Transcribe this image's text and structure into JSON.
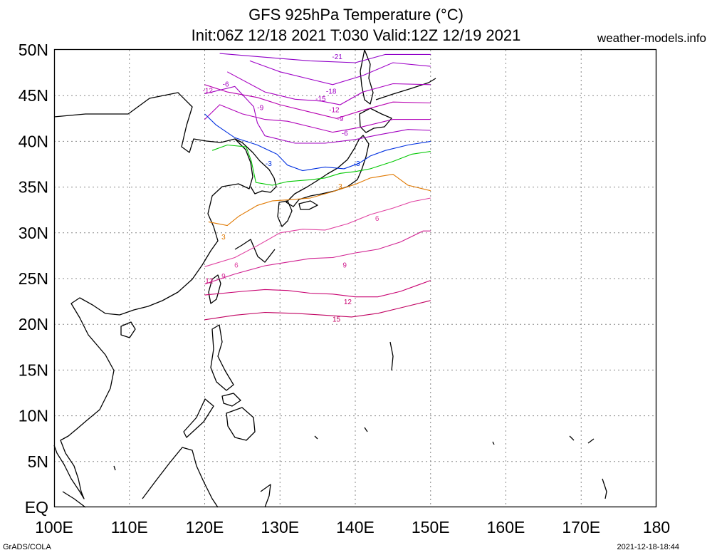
{
  "title": {
    "line1": "GFS 925hPa Temperature (°C)",
    "line2": "Init:06Z 12/18 2021 T:030 Valid:12Z 12/19 2021"
  },
  "site": "weather-models.info",
  "footer": {
    "left": "GrADS/COLA",
    "right": "2021-12-18-18:44"
  },
  "axes": {
    "lat_labels": [
      "EQ",
      "5N",
      "10N",
      "15N",
      "20N",
      "25N",
      "30N",
      "35N",
      "40N",
      "45N",
      "50N"
    ],
    "lat_values": [
      0,
      5,
      10,
      15,
      20,
      25,
      30,
      35,
      40,
      45,
      50
    ],
    "lon_labels": [
      "100E",
      "110E",
      "120E",
      "130E",
      "140E",
      "150E",
      "160E",
      "170E",
      "180"
    ],
    "lon_values": [
      100,
      110,
      120,
      130,
      140,
      150,
      160,
      170,
      180
    ]
  },
  "map_extent": {
    "lon": [
      100,
      180
    ],
    "lat": [
      0,
      50
    ],
    "data_lon": [
      120,
      150
    ]
  },
  "contours": [
    {
      "level": "-21",
      "color": "#9000c8",
      "points": [
        [
          122,
          49.6
        ],
        [
          128,
          49.2
        ],
        [
          134,
          48.8
        ],
        [
          140,
          48.6
        ],
        [
          144,
          49.5
        ],
        [
          150,
          49.5
        ]
      ]
    },
    {
      "level": "-18",
      "color": "#9e00c8",
      "points": [
        [
          126,
          48.8
        ],
        [
          130,
          47.6
        ],
        [
          134,
          46.8
        ],
        [
          137,
          46.2
        ],
        [
          141,
          47.2
        ],
        [
          145,
          48.6
        ],
        [
          150,
          48.2
        ]
      ]
    },
    {
      "level": "-15",
      "color": "#a800c0",
      "points": [
        [
          123,
          47.6
        ],
        [
          128,
          45.4
        ],
        [
          132,
          44.6
        ],
        [
          135.5,
          44.4
        ],
        [
          138,
          44.0
        ],
        [
          141,
          45.4
        ],
        [
          145,
          46.3
        ],
        [
          150,
          46.2
        ]
      ]
    },
    {
      "level": "-12",
      "color": "#b800b0",
      "points": [
        [
          120,
          46.2
        ],
        [
          123,
          45.4
        ],
        [
          127,
          44.8
        ],
        [
          130,
          44.0
        ],
        [
          134,
          43.2
        ],
        [
          137.5,
          42.5
        ],
        [
          141,
          43.4
        ],
        [
          145,
          44.3
        ],
        [
          150,
          44.2
        ]
      ]
    },
    {
      "level": "-9",
      "color": "#b000b8",
      "points": [
        [
          120,
          42.4
        ],
        [
          122,
          44.0
        ],
        [
          125,
          43.0
        ],
        [
          128,
          42.4
        ],
        [
          131,
          42.2
        ],
        [
          134,
          41.6
        ],
        [
          137,
          41.0
        ],
        [
          140.5,
          41.5
        ],
        [
          145,
          42.4
        ],
        [
          150,
          42.4
        ]
      ]
    },
    {
      "level": "-6",
      "color": "#a000c0",
      "points": [
        [
          120,
          45.2
        ],
        [
          124,
          46.0
        ],
        [
          126.5,
          43.8
        ],
        [
          127,
          42.0
        ],
        [
          128,
          40.6
        ],
        [
          132,
          39.8
        ],
        [
          136,
          39.8
        ],
        [
          140,
          40.2
        ],
        [
          143,
          40.7
        ],
        [
          147,
          41.3
        ],
        [
          150,
          41.2
        ]
      ]
    },
    {
      "level": "-3",
      "color": "#0030e0",
      "points": [
        [
          120,
          43.0
        ],
        [
          121.5,
          41.8
        ],
        [
          124,
          40.4
        ],
        [
          127,
          39.6
        ],
        [
          129.6,
          38.6
        ],
        [
          131,
          37.4
        ],
        [
          133,
          36.8
        ],
        [
          136,
          37.2
        ],
        [
          138.5,
          37.0
        ],
        [
          140.5,
          37.6
        ],
        [
          142,
          38.4
        ],
        [
          144,
          39.0
        ],
        [
          147,
          39.6
        ],
        [
          150,
          40.0
        ]
      ]
    },
    {
      "level": "0",
      "color": "#00c800",
      "points": [
        [
          121,
          39.0
        ],
        [
          123,
          39.6
        ],
        [
          125.5,
          39.4
        ],
        [
          126.2,
          37.8
        ],
        [
          126.8,
          35.5
        ],
        [
          129,
          35.2
        ],
        [
          131,
          35.6
        ],
        [
          134,
          35.8
        ],
        [
          136,
          36.0
        ],
        [
          138,
          36.5
        ],
        [
          140,
          36.7
        ],
        [
          142,
          37.0
        ],
        [
          145,
          37.8
        ],
        [
          147.5,
          38.6
        ],
        [
          150,
          38.9
        ]
      ]
    },
    {
      "level": "3",
      "color": "#e07800",
      "points": [
        [
          120.5,
          31.2
        ],
        [
          123,
          30.8
        ],
        [
          124.5,
          31.8
        ],
        [
          127,
          33.0
        ],
        [
          129,
          33.5
        ],
        [
          131,
          33.6
        ],
        [
          134,
          33.8
        ],
        [
          137,
          34.5
        ],
        [
          140,
          35.3
        ],
        [
          142,
          36.0
        ],
        [
          145,
          36.4
        ],
        [
          147,
          35.2
        ],
        [
          150,
          34.6
        ]
      ]
    },
    {
      "level": "6",
      "color": "#e040a0",
      "points": [
        [
          120,
          26.3
        ],
        [
          124,
          27.3
        ],
        [
          127,
          28.6
        ],
        [
          130,
          30.0
        ],
        [
          133,
          30.4
        ],
        [
          136,
          30.3
        ],
        [
          139,
          31.0
        ],
        [
          142,
          32.0
        ],
        [
          145,
          32.7
        ],
        [
          147.5,
          33.4
        ],
        [
          150,
          33.8
        ]
      ]
    },
    {
      "level": "9",
      "color": "#d02090",
      "points": [
        [
          120,
          24.4
        ],
        [
          124,
          25.5
        ],
        [
          128,
          26.4
        ],
        [
          131,
          26.8
        ],
        [
          134,
          27.2
        ],
        [
          137,
          27.3
        ],
        [
          140,
          27.8
        ],
        [
          143,
          28.2
        ],
        [
          146,
          29.0
        ],
        [
          149,
          30.2
        ],
        [
          150,
          30.2
        ]
      ]
    },
    {
      "level": "12",
      "color": "#c80070",
      "points": [
        [
          120,
          23.2
        ],
        [
          125,
          23.6
        ],
        [
          128,
          23.8
        ],
        [
          131,
          23.7
        ],
        [
          134,
          23.4
        ],
        [
          137,
          23.3
        ],
        [
          140,
          23.0
        ],
        [
          143,
          23.0
        ],
        [
          146,
          23.6
        ],
        [
          148,
          24.2
        ],
        [
          150,
          24.8
        ]
      ]
    },
    {
      "level": "15",
      "color": "#c00060",
      "points": [
        [
          120,
          20.5
        ],
        [
          124,
          21.0
        ],
        [
          128,
          21.3
        ],
        [
          132,
          21.2
        ],
        [
          136,
          21.0
        ],
        [
          139.5,
          20.8
        ],
        [
          143,
          21.2
        ],
        [
          146,
          21.8
        ],
        [
          150,
          22.6
        ]
      ]
    }
  ],
  "contour_labels": [
    {
      "text": "-21",
      "lon": 137.6,
      "lat": 49.0,
      "color": "#9000c8"
    },
    {
      "text": "-6",
      "lon": 122.8,
      "lat": 46.0,
      "color": "#a000c0"
    },
    {
      "text": "-12",
      "lon": 120.4,
      "lat": 45.3,
      "color": "#b800b0"
    },
    {
      "text": "-15",
      "lon": 135.4,
      "lat": 44.4,
      "color": "#a800c0"
    },
    {
      "text": "-18",
      "lon": 136.8,
      "lat": 45.2,
      "color": "#9e00c8"
    },
    {
      "text": "-12",
      "lon": 137.2,
      "lat": 43.2,
      "color": "#b800b0"
    },
    {
      "text": "-9",
      "lon": 127.4,
      "lat": 43.4,
      "color": "#b000b8"
    },
    {
      "text": "-9",
      "lon": 138.0,
      "lat": 42.2,
      "color": "#b000b8"
    },
    {
      "text": "-6",
      "lon": 138.6,
      "lat": 40.6,
      "color": "#a000c0"
    },
    {
      "text": "-3",
      "lon": 128.5,
      "lat": 37.3,
      "color": "#0030e0"
    },
    {
      "text": "-3",
      "lon": 140.2,
      "lat": 37.3,
      "color": "#0030e0"
    },
    {
      "text": "3",
      "lon": 138.0,
      "lat": 34.8,
      "color": "#e07800"
    },
    {
      "text": "3",
      "lon": 122.5,
      "lat": 29.3,
      "color": "#e07800"
    },
    {
      "text": "6",
      "lon": 142.9,
      "lat": 31.3,
      "color": "#e040a0"
    },
    {
      "text": "6",
      "lon": 124.2,
      "lat": 26.2,
      "color": "#e040a0"
    },
    {
      "text": "9",
      "lon": 122.5,
      "lat": 25.0,
      "color": "#d02090"
    },
    {
      "text": "9",
      "lon": 138.6,
      "lat": 26.2,
      "color": "#d02090"
    },
    {
      "text": "12",
      "lon": 120.6,
      "lat": 24.5,
      "color": "#c80070"
    },
    {
      "text": "12",
      "lon": 139.0,
      "lat": 22.2,
      "color": "#c80070"
    },
    {
      "text": "15",
      "lon": 137.5,
      "lat": 20.3,
      "color": "#c00060"
    }
  ]
}
